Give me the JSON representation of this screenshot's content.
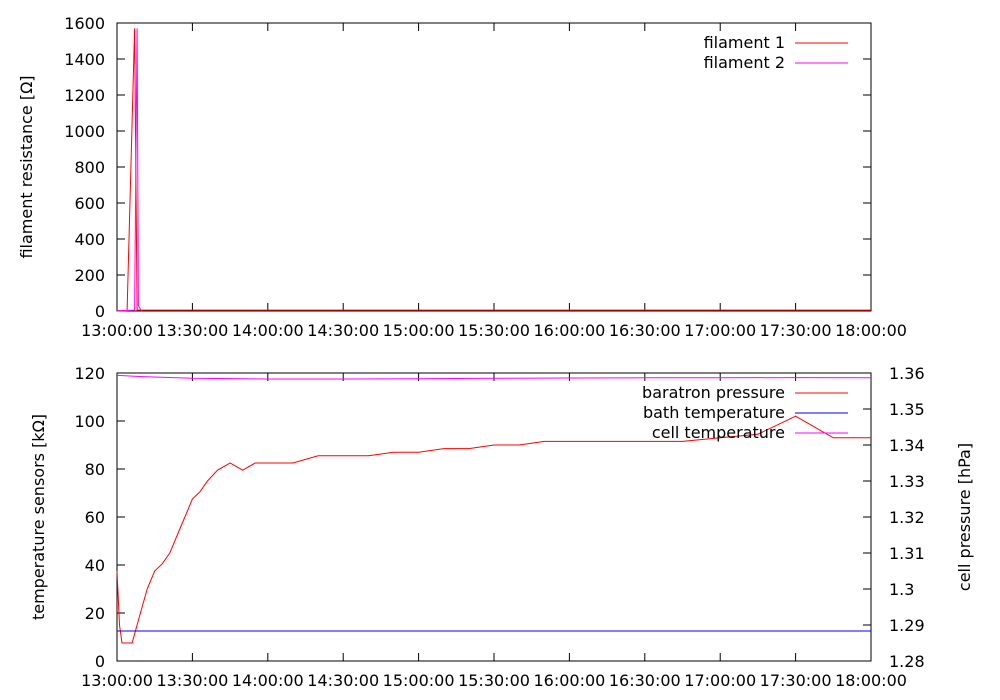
{
  "chart_data": [
    {
      "type": "line",
      "title": "",
      "xlabel": "",
      "ylabel": "filament resistance [Ω]",
      "xlim": [
        "13:00:00",
        "18:00:00"
      ],
      "ylim": [
        0,
        1600
      ],
      "x_ticks": [
        "13:00:00",
        "13:30:00",
        "14:00:00",
        "14:30:00",
        "15:00:00",
        "15:30:00",
        "16:00:00",
        "16:30:00",
        "17:00:00",
        "17:30:00",
        "18:00:00"
      ],
      "y_ticks": [
        0,
        200,
        400,
        600,
        800,
        1000,
        1200,
        1400,
        1600
      ],
      "grid": false,
      "legend_position": "top-right",
      "series": [
        {
          "name": "filament 1",
          "color": "#ff0000",
          "axis": "left",
          "x": [
            "13:00:00",
            "13:04:00",
            "13:07:00",
            "13:08:00",
            "18:00:00"
          ],
          "y": [
            2,
            2,
            1570,
            5,
            5
          ]
        },
        {
          "name": "filament 2",
          "color": "#ff00ff",
          "axis": "left",
          "x": [
            "13:00:00",
            "13:07:00",
            "13:08:00",
            "13:08:30",
            "13:09:30",
            "13:10:00"
          ],
          "y": [
            0,
            5,
            1570,
            30,
            5,
            0
          ]
        }
      ]
    },
    {
      "type": "line",
      "title": "",
      "xlabel": "",
      "ylabel": "temperature sensors [kΩ]",
      "y2label": "cell pressure [hPa]",
      "xlim": [
        "13:00:00",
        "18:00:00"
      ],
      "ylim": [
        0,
        120
      ],
      "y2lim": [
        1.28,
        1.36
      ],
      "x_ticks": [
        "13:00:00",
        "13:30:00",
        "14:00:00",
        "14:30:00",
        "15:00:00",
        "15:30:00",
        "16:00:00",
        "16:30:00",
        "17:00:00",
        "17:30:00",
        "18:00:00"
      ],
      "y_ticks": [
        0,
        20,
        40,
        60,
        80,
        100,
        120
      ],
      "y2_ticks": [
        "1.28",
        "1.29",
        "1.3",
        "1.31",
        "1.32",
        "1.33",
        "1.34",
        "1.35",
        "1.36"
      ],
      "grid": false,
      "legend_position": "top-right",
      "series": [
        {
          "name": "baratron pressure",
          "color": "#ff0000",
          "axis": "right",
          "x": [
            "13:00:00",
            "13:01:00",
            "13:02:00",
            "13:03:00",
            "13:06:00",
            "13:08:00",
            "13:10:00",
            "13:12:00",
            "13:15:00",
            "13:18:00",
            "13:21:00",
            "13:24:00",
            "13:27:00",
            "13:30:00",
            "13:33:00",
            "13:36:00",
            "13:40:00",
            "13:45:00",
            "13:50:00",
            "13:55:00",
            "14:00:00",
            "14:10:00",
            "14:20:00",
            "14:30:00",
            "14:40:00",
            "14:50:00",
            "15:00:00",
            "15:10:00",
            "15:20:00",
            "15:30:00",
            "15:40:00",
            "15:50:00",
            "16:00:00",
            "16:15:00",
            "16:30:00",
            "16:45:00",
            "17:00:00",
            "17:15:00",
            "17:30:00",
            "17:45:00",
            "18:00:00"
          ],
          "y": [
            1.305,
            1.29,
            1.285,
            1.285,
            1.285,
            1.29,
            1.295,
            1.3,
            1.305,
            1.307,
            1.31,
            1.315,
            1.32,
            1.325,
            1.327,
            1.33,
            1.333,
            1.335,
            1.333,
            1.335,
            1.335,
            1.335,
            1.337,
            1.337,
            1.337,
            1.338,
            1.338,
            1.339,
            1.339,
            1.34,
            1.34,
            1.341,
            1.341,
            1.341,
            1.341,
            1.341,
            1.342,
            1.343,
            1.348,
            1.342,
            1.342
          ]
        },
        {
          "name": "bath temperature",
          "color": "#0000ff",
          "axis": "left",
          "x": [
            "13:00:00",
            "18:00:00"
          ],
          "y": [
            12.5,
            12.5
          ]
        },
        {
          "name": "cell temperature",
          "color": "#ff00ff",
          "axis": "left",
          "x": [
            "13:00:00",
            "13:10:00",
            "13:30:00",
            "14:00:00",
            "14:30:00",
            "15:00:00",
            "15:30:00",
            "16:00:00",
            "16:30:00",
            "17:00:00",
            "17:30:00",
            "18:00:00"
          ],
          "y": [
            119,
            118.5,
            117.8,
            117.5,
            117.5,
            117.6,
            117.8,
            117.9,
            118,
            118,
            118.1,
            118
          ]
        }
      ]
    }
  ]
}
